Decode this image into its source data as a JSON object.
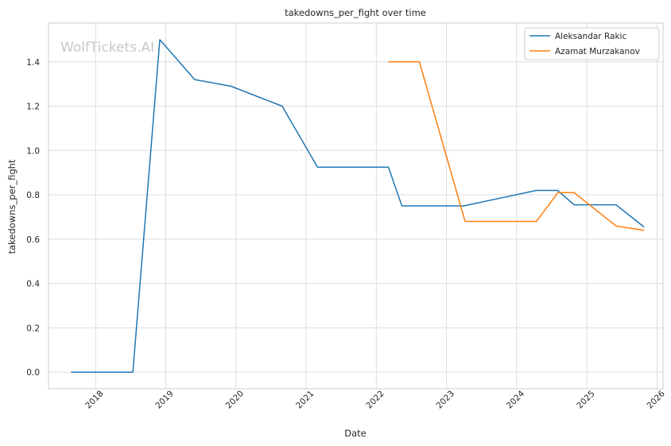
{
  "chart_data": {
    "type": "line",
    "title": "takedowns_per_fight over time",
    "xlabel": "Date",
    "ylabel": "takedowns_per_fight",
    "watermark": "WolfTickets.AI",
    "x_ticks": [
      "2018",
      "2019",
      "2020",
      "2021",
      "2022",
      "2023",
      "2024",
      "2025",
      "2026"
    ],
    "y_ticks": [
      "0.0",
      "0.2",
      "0.4",
      "0.6",
      "0.8",
      "1.0",
      "1.2",
      "1.4"
    ],
    "xlim": [
      "2017-05-01",
      "2026-02-01"
    ],
    "ylim": [
      -0.075,
      1.575
    ],
    "grid": true,
    "legend_position": "top-right",
    "series": [
      {
        "name": "Aleksandar Rakic",
        "color": "#1f77b4",
        "points": [
          [
            "2017-08-26",
            0.0
          ],
          [
            "2018-07-14",
            0.0
          ],
          [
            "2018-12-01",
            1.5
          ],
          [
            "2019-06-01",
            1.32
          ],
          [
            "2019-12-07",
            1.29
          ],
          [
            "2020-08-29",
            1.2
          ],
          [
            "2021-03-01",
            0.925
          ],
          [
            "2022-03-05",
            0.925
          ],
          [
            "2022-05-14",
            0.75
          ],
          [
            "2023-04-01",
            0.75
          ],
          [
            "2024-04-13",
            0.82
          ],
          [
            "2024-08-01",
            0.82
          ],
          [
            "2024-10-26",
            0.755
          ],
          [
            "2025-06-01",
            0.755
          ],
          [
            "2025-10-25",
            0.655
          ]
        ]
      },
      {
        "name": "Azamat Murzakanov",
        "color": "#ff7f0e",
        "points": [
          [
            "2022-03-05",
            1.4
          ],
          [
            "2022-08-13",
            1.4
          ],
          [
            "2023-04-08",
            0.68
          ],
          [
            "2024-04-13",
            0.68
          ],
          [
            "2024-08-03",
            0.81
          ],
          [
            "2024-10-26",
            0.81
          ],
          [
            "2025-06-01",
            0.66
          ],
          [
            "2025-10-25",
            0.64
          ]
        ]
      }
    ]
  }
}
